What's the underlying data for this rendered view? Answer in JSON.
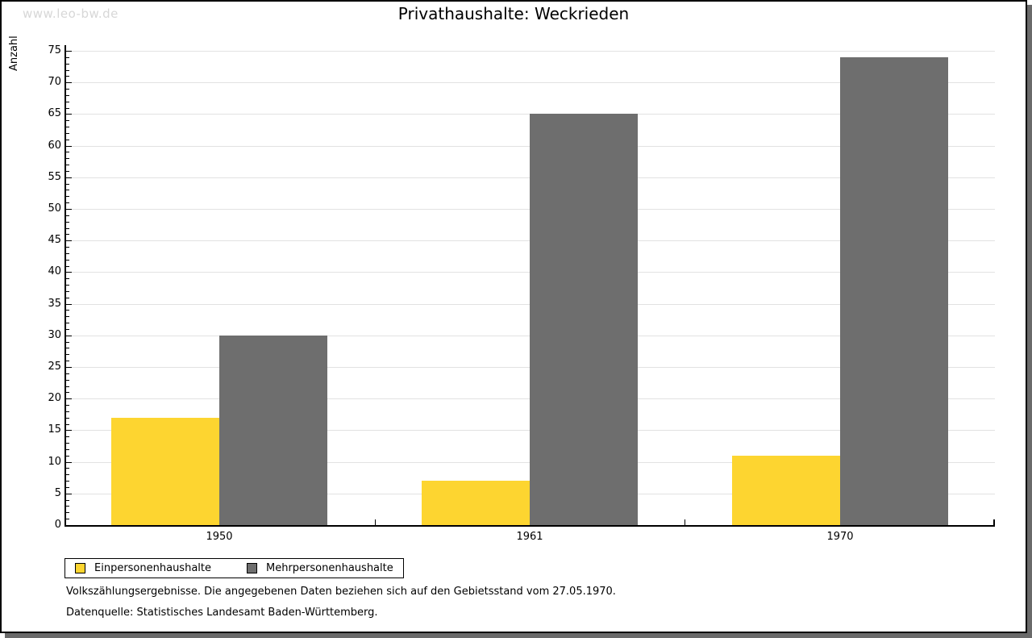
{
  "watermark": "www.leo-bw.de",
  "title": "Privathaushalte: Weckrieden",
  "chart_data": {
    "type": "bar",
    "title": "Privathaushalte: Weckrieden",
    "xlabel": "",
    "ylabel": "Anzahl",
    "categories": [
      "1950",
      "1961",
      "1970"
    ],
    "series": [
      {
        "name": "Einpersonenhaushalte",
        "color": "#FDD530",
        "values": [
          17,
          7,
          11
        ]
      },
      {
        "name": "Mehrpersonenhaushalte",
        "color": "#6E6E6E",
        "values": [
          30,
          65,
          74
        ]
      }
    ],
    "ylim": [
      0,
      75
    ],
    "ytick_major": 5,
    "ytick_minor": 1,
    "grid": "horizontal-major",
    "gridline_color": "#e2e2e2",
    "legend_position": "bottom-left"
  },
  "footnotes": {
    "line1": "Volkszählungsergebnisse. Die angegebenen Daten beziehen sich auf den Gebietsstand vom 27.05.1970.",
    "line2": "Datenquelle: Statistisches Landesamt Baden-Württemberg."
  }
}
